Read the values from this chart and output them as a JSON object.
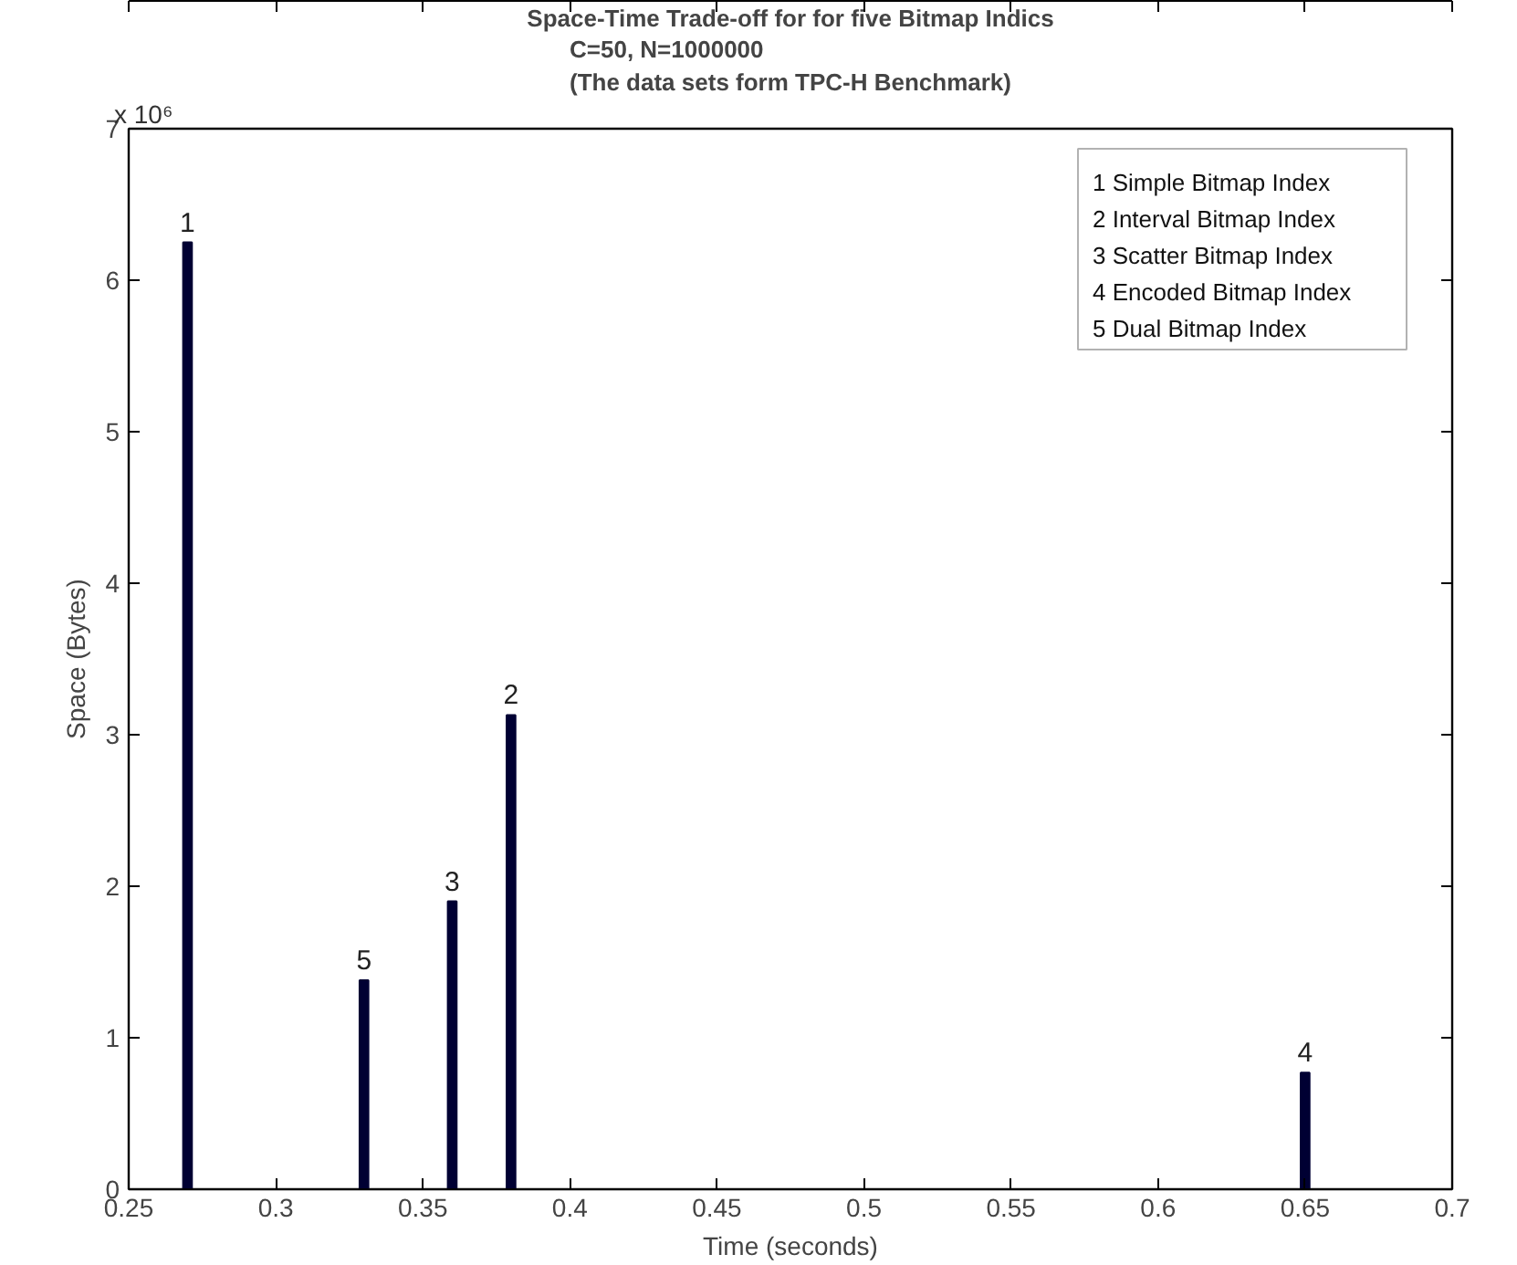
{
  "chart_data": {
    "type": "bar",
    "title": "Space-Time Trade-off for for five Bitmap Indics",
    "subtitle": "C=50, N=1000000\n(The data sets form TPC-H Benchmark)",
    "xlabel": "Time (seconds)",
    "ylabel": "Space (Bytes)",
    "x": [
      0.27,
      0.33,
      0.36,
      0.38,
      0.65
    ],
    "values": [
      6.25,
      1.38,
      1.9,
      3.13,
      0.77
    ],
    "color": "#000033",
    "xlim": [
      0.25,
      0.7
    ],
    "xticks": [
      0.25,
      0.3,
      0.35,
      0.4,
      0.45,
      0.5,
      0.55,
      0.6,
      0.65,
      0.7
    ],
    "ylim": [
      0,
      7
    ],
    "yticks": [
      0,
      1,
      2,
      3,
      4,
      5,
      6,
      7
    ],
    "annotations": [
      "x 10⁶",
      "1 Simple Bitmap Index",
      "2 Interval Bitmap Index",
      "3 Scatter Bitmap Index",
      "4 Encoded Bitmap Index",
      "5 Dual Bitmap Index",
      {
        "text": "1",
        "x": 0.27,
        "y": 6.25
      },
      {
        "text": "5",
        "x": 0.33,
        "y": 1.38
      },
      {
        "text": "3",
        "x": 0.36,
        "y": 1.9
      },
      {
        "text": "2",
        "x": 0.38,
        "y": 3.13
      },
      {
        "text": "4",
        "x": 0.65,
        "y": 0.77
      }
    ],
    "grid": false
  }
}
